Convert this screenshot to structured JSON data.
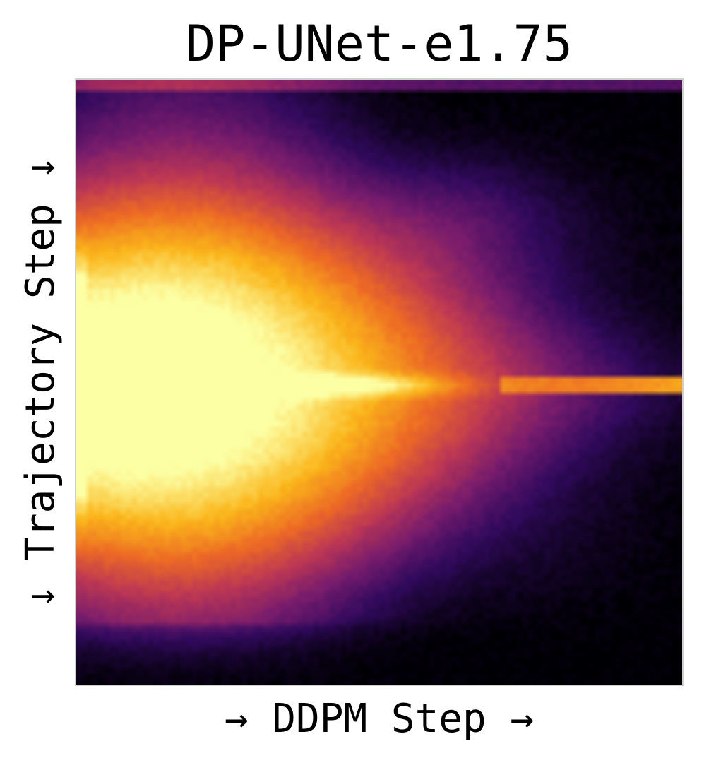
{
  "chart_data": {
    "type": "heatmap",
    "title": "DP-UNet-e1.75",
    "xlabel": "→ DDPM Step →",
    "ylabel": "↓ Trajectory Step ↓",
    "colormap": "inferno",
    "colors": [
      "#000004",
      "#320a5e",
      "#781c6d",
      "#bc3754",
      "#ed6925",
      "#fbb61a",
      "#fcffa4"
    ],
    "grid": false,
    "legend": "none",
    "frame_color": "#cfcfcf"
  }
}
